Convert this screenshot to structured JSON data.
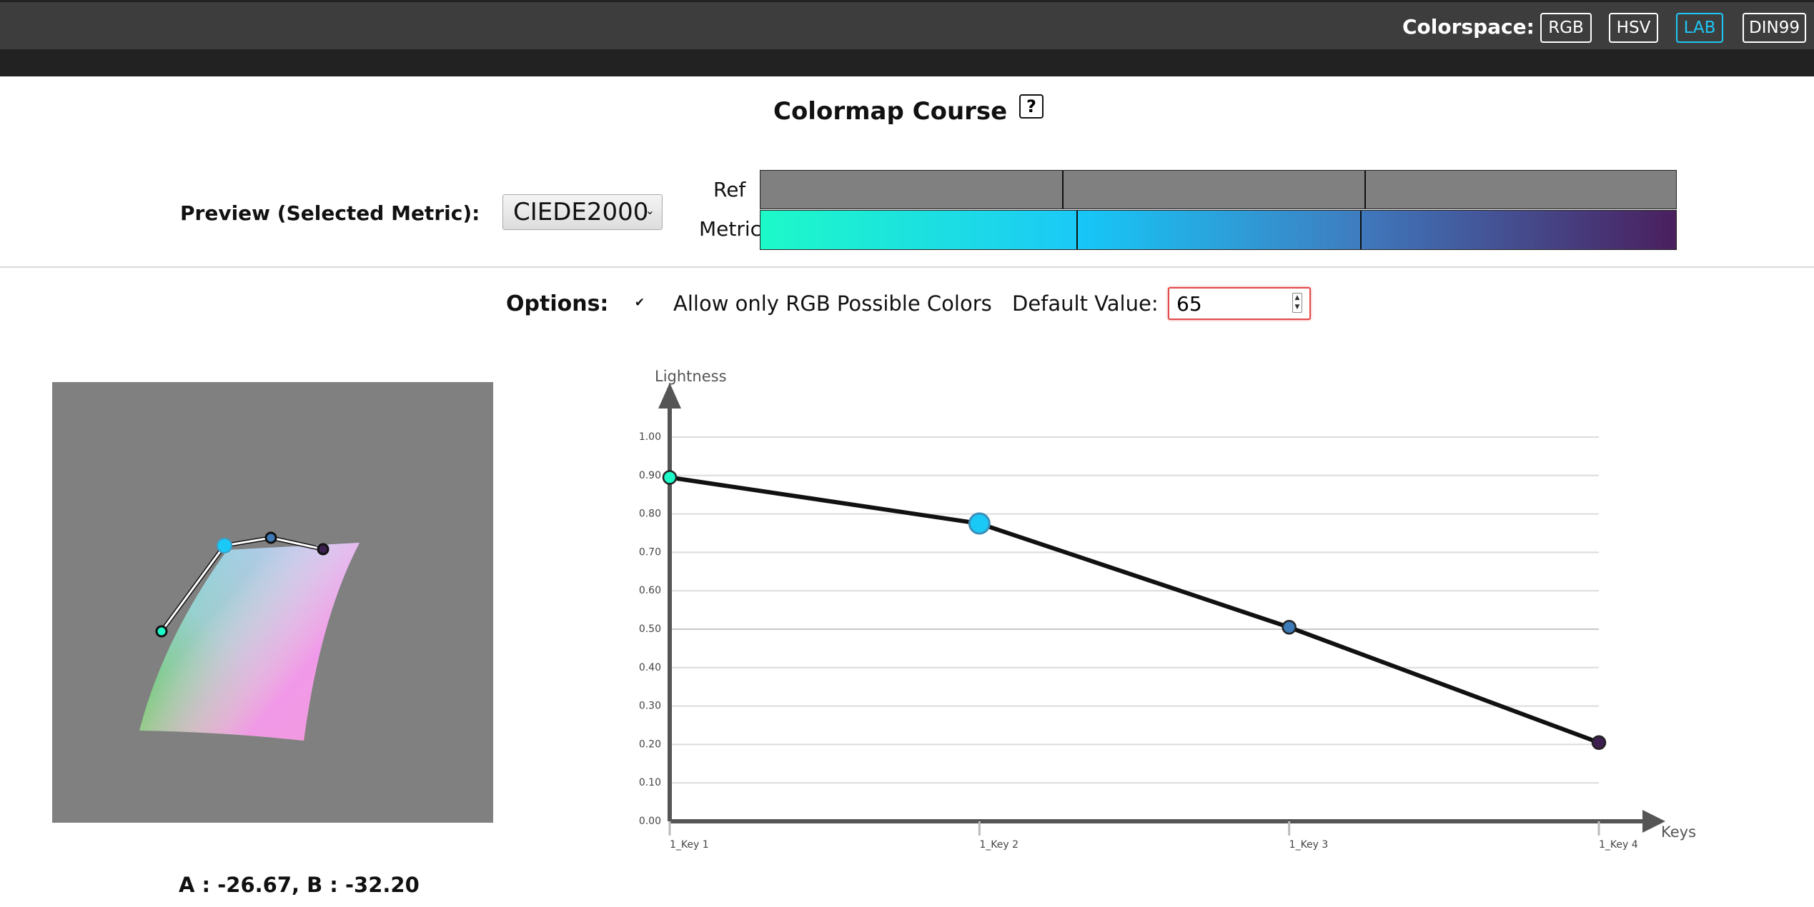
{
  "topbar": {
    "colorspace_label": "Colorspace:",
    "buttons": [
      {
        "label": "RGB",
        "active": false
      },
      {
        "label": "HSV",
        "active": false
      },
      {
        "label": "LAB",
        "active": true
      },
      {
        "label": "DIN99",
        "active": false
      }
    ]
  },
  "heading": {
    "title": "Colormap Course",
    "help_label": "?"
  },
  "preview": {
    "label": "Preview (Selected Metric):",
    "selected_metric": "CIEDE2000",
    "ref_label": "Ref",
    "metric_label": "Metric",
    "ref_color": "#808080",
    "metric_segments": [
      {
        "from": "#1dfac8",
        "to": "#1bc9f6",
        "share": 0.345
      },
      {
        "from": "#16c8f8",
        "to": "#3f7cbf",
        "share": 0.31
      },
      {
        "from": "#3f78bd",
        "to": "#4a1f5e",
        "share": 0.345
      }
    ]
  },
  "options": {
    "label": "Options:",
    "rgb_only_checked": true,
    "rgb_only_label": "Allow only RGB Possible Colors",
    "default_value_label": "Default Value:",
    "default_value": "65"
  },
  "ab_plane": {
    "readout": "A : -26.67, B : -32.20",
    "key_colors": [
      "#1dfac8",
      "#1bc9f6",
      "#3d7ab8",
      "#3c1f4e"
    ]
  },
  "chart_data": {
    "type": "line",
    "ylabel": "Lightness",
    "xlabel": "Keys",
    "categories": [
      "1_Key 1",
      "1_Key 2",
      "1_Key 3",
      "1_Key 4"
    ],
    "yticks": [
      "0.00",
      "0.10",
      "0.20",
      "0.30",
      "0.40",
      "0.50",
      "0.60",
      "0.70",
      "0.80",
      "0.90",
      "1.00"
    ],
    "ylim": [
      0,
      1
    ],
    "grid": true,
    "series": [
      {
        "values": [
          0.895,
          0.775,
          0.505,
          0.205
        ],
        "colors": [
          "#1dfac8",
          "#1bc9f6",
          "#3d7ab8",
          "#3c1f4e"
        ],
        "selected_index": 1
      }
    ]
  }
}
